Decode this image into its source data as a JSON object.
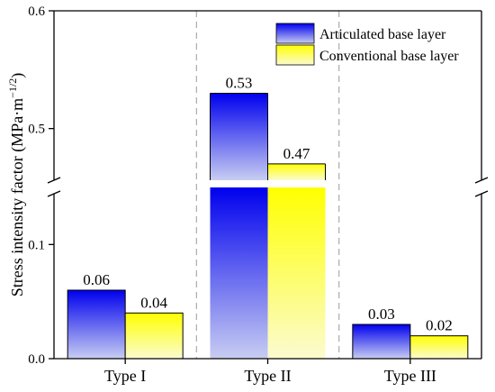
{
  "chart_data": {
    "type": "bar",
    "categories": [
      "Type I",
      "Type II",
      "Type III"
    ],
    "series": [
      {
        "name": "Articulated base layer",
        "values": [
          0.06,
          0.53,
          0.03
        ],
        "labels": [
          "0.06",
          "0.53",
          "0.03"
        ]
      },
      {
        "name": "Conventional base layer",
        "values": [
          0.04,
          0.47,
          0.02
        ],
        "labels": [
          "0.04",
          "0.47",
          "0.02"
        ]
      }
    ],
    "ylabel": "Stress intensity factor (MPa·m",
    "ylabel_exponent": "−1/2",
    "ylabel_close": ")",
    "axis_break": {
      "lower_range": [
        0,
        0.15
      ],
      "upper_range": [
        0.45,
        0.6
      ]
    },
    "yticks": [
      {
        "value": 0,
        "label": "0.0"
      },
      {
        "value": 0.1,
        "label": "0.1"
      },
      {
        "value": 0.5,
        "label": "0.5"
      },
      {
        "value": 0.6,
        "label": "0.6"
      }
    ],
    "legend_position": "top-right",
    "colors": {
      "articulated_top": "#0000ee",
      "articulated_bottom": "#c8cdf2",
      "conventional_top": "#ffff00",
      "conventional_bottom": "#fbfbd0",
      "divider": "#aaaaaa"
    }
  }
}
